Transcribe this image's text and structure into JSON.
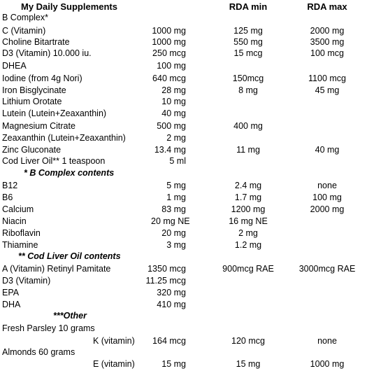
{
  "header": {
    "title": "My Daily Supplements",
    "rda_min": "RDA min",
    "rda_max": "RDA max"
  },
  "rows": [
    {
      "name": "B Complex*",
      "amount": "",
      "min": "",
      "max": ""
    },
    {
      "name": "C (Vitamin)",
      "amount": "1000 mg",
      "min": "125 mg",
      "max": "2000 mg"
    },
    {
      "name": "Choline Bitartrate",
      "amount": "1000 mg",
      "min": "550 mg",
      "max": "3500 mg"
    },
    {
      "name": "D3 (Vitamin) 10.000 iu.",
      "amount": "250 mcg",
      "min": "15 mcg",
      "max": "100 mcg"
    },
    {
      "name": "DHEA",
      "amount": "100 mg",
      "min": "",
      "max": ""
    },
    {
      "name": "Iodine (from 4g Nori)",
      "amount": "640 mcg",
      "min": "150mcg",
      "max": "1100 mcg"
    },
    {
      "name": "Iron Bisglycinate",
      "amount": "28 mg",
      "min": "8 mg",
      "max": "45 mg"
    },
    {
      "name": "Lithium Orotate",
      "amount": "10 mg",
      "min": "",
      "max": ""
    },
    {
      "name": "Lutein (Lutein+Zeaxanthin)",
      "amount": "40 mg",
      "min": "",
      "max": ""
    },
    {
      "name": "Magnesium Citrate",
      "amount": "500 mg",
      "min": "400 mg",
      "max": ""
    },
    {
      "name": "Zeaxanthin (Lutein+Zeaxanthin)",
      "amount": "2 mg",
      "min": "",
      "max": ""
    },
    {
      "name": "Zinc Gluconate",
      "amount": "13.4 mg",
      "min": "11 mg",
      "max": "40 mg"
    },
    {
      "name": "Cod Liver Oil** 1 teaspoon",
      "amount": "5 ml",
      "min": "",
      "max": ""
    }
  ],
  "b_complex": {
    "heading": "* B Complex contents",
    "rows": [
      {
        "name": "B12",
        "amount": "5 mg",
        "min": "2.4 mg",
        "max": "none"
      },
      {
        "name": "B6",
        "amount": "1 mg",
        "min": "1.7 mg",
        "max": "100 mg"
      },
      {
        "name": "Calcium",
        "amount": "83 mg",
        "min": "1200 mg",
        "max": "2000 mg"
      },
      {
        "name": "Niacin",
        "amount": "20 mg NE",
        "min": "16 mg NE",
        "max": ""
      },
      {
        "name": "Riboflavin",
        "amount": "20 mg",
        "min": "2 mg",
        "max": ""
      },
      {
        "name": "Thiamine",
        "amount": "3 mg",
        "min": "1.2  mg",
        "max": ""
      }
    ]
  },
  "cod_liver": {
    "heading": "** Cod Liver Oil contents",
    "rows": [
      {
        "name": "A (Vitamin) Retinyl Pamitate",
        "amount": "1350 mcg",
        "min": "900mcg RAE",
        "max": "3000mcg RAE"
      },
      {
        "name": "D3 (Vitamin)",
        "amount": "11.25 mcg",
        "min": "",
        "max": ""
      },
      {
        "name": "EPA",
        "amount": "320 mg",
        "min": "",
        "max": ""
      },
      {
        "name": "DHA",
        "amount": "410 mg",
        "min": "",
        "max": ""
      }
    ]
  },
  "other": {
    "heading": "***Other",
    "parsley": {
      "name": "Fresh Parsley 10 grams",
      "sub": "K (vitamin)",
      "amount": "164 mcg",
      "min": "120 mcg",
      "max": "none"
    },
    "almonds": {
      "name": "Almonds 60 grams",
      "sub": "E (vitamin)",
      "amount": "15 mg",
      "min": "15 mg",
      "max": "1000 mg"
    }
  }
}
